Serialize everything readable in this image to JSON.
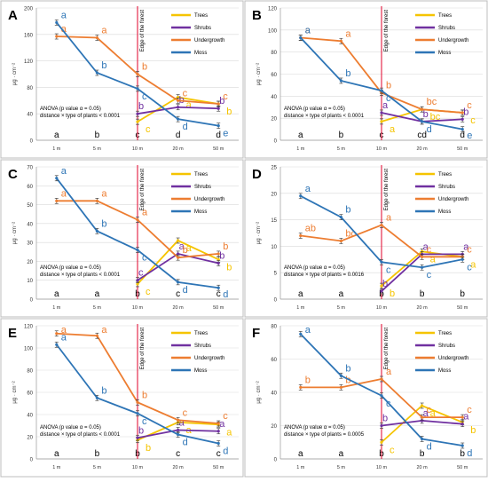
{
  "colors": {
    "Trees": "#F5C400",
    "Shrubs": "#7030A0",
    "Undergrowth": "#ED7D31",
    "Moss": "#2E75B6",
    "edge": "#E0002A"
  },
  "shared": {
    "legend": [
      "Trees",
      "Shrubs",
      "Undergrowth",
      "Moss"
    ],
    "edge_label": "Edge of the forest",
    "ylabel": "μg · cm⁻²",
    "categories": [
      "1 m",
      "5 m",
      "10 m",
      "20 m",
      "50 m"
    ],
    "anova_line": "ANOVA (p value α = 0.05)"
  },
  "chart_data": [
    {
      "panel": "A",
      "type": "line",
      "ylim": [
        0,
        200
      ],
      "yticks": [
        0,
        40,
        80,
        120,
        160,
        200
      ],
      "anova_detail": "distance × type of plants < 0.0001",
      "bottom_letters": [
        "a",
        "b",
        "c",
        "d",
        "d"
      ],
      "series": [
        {
          "name": "Trees",
          "x": [
            "10 m",
            "20 m",
            "50 m"
          ],
          "values": [
            28,
            65,
            55
          ],
          "letters": [
            "c",
            "a",
            "b"
          ]
        },
        {
          "name": "Shrubs",
          "x": [
            "10 m",
            "20 m",
            "50 m"
          ],
          "values": [
            40,
            50,
            48
          ],
          "letters": [
            "b",
            "b",
            "b"
          ]
        },
        {
          "name": "Undergrowth",
          "x": [
            "1 m",
            "5 m",
            "10 m",
            "20 m",
            "50 m"
          ],
          "values": [
            157,
            155,
            100,
            60,
            55
          ],
          "letters": [
            "a",
            "a",
            "b",
            "c",
            "c"
          ]
        },
        {
          "name": "Moss",
          "x": [
            "1 m",
            "5 m",
            "10 m",
            "20 m",
            "50 m"
          ],
          "values": [
            178,
            102,
            78,
            32,
            22
          ],
          "letters": [
            "a",
            "b",
            "c",
            "d",
            "e"
          ]
        }
      ]
    },
    {
      "panel": "B",
      "type": "line",
      "ylim": [
        0,
        120
      ],
      "yticks": [
        0,
        20,
        40,
        60,
        80,
        100,
        120
      ],
      "anova_detail": "distance × type of plants < 0.0001",
      "bottom_letters": [
        "a",
        "b",
        "c",
        "cd",
        "d"
      ],
      "series": [
        {
          "name": "Trees",
          "x": [
            "10 m",
            "20 m",
            "50 m"
          ],
          "values": [
            17,
            28,
            25
          ],
          "letters": [
            "a",
            "bc",
            "c"
          ]
        },
        {
          "name": "Shrubs",
          "x": [
            "10 m",
            "20 m",
            "50 m"
          ],
          "values": [
            25,
            17,
            19
          ],
          "letters": [
            "a",
            "b",
            "b"
          ]
        },
        {
          "name": "Undergrowth",
          "x": [
            "1 m",
            "5 m",
            "10 m",
            "20 m",
            "50 m"
          ],
          "values": [
            93,
            90,
            43,
            28,
            25
          ],
          "letters": [
            "a",
            "a",
            "b",
            "bc",
            "c"
          ]
        },
        {
          "name": "Moss",
          "x": [
            "1 m",
            "5 m",
            "10 m",
            "20 m",
            "50 m"
          ],
          "values": [
            93,
            54,
            45,
            17,
            10
          ],
          "letters": [
            "a",
            "b",
            "c",
            "d",
            "e"
          ]
        }
      ]
    },
    {
      "panel": "C",
      "type": "line",
      "ylim": [
        0,
        70
      ],
      "yticks": [
        0,
        10,
        20,
        30,
        40,
        50,
        60,
        70
      ],
      "anova_detail": "distance × type of plants < 0.0001",
      "bottom_letters": [
        "a",
        "a",
        "b",
        "c",
        "c"
      ],
      "series": [
        {
          "name": "Trees",
          "x": [
            "10 m",
            "20 m",
            "50 m"
          ],
          "values": [
            8,
            31,
            21
          ],
          "letters": [
            "c",
            "a",
            "b"
          ]
        },
        {
          "name": "Shrubs",
          "x": [
            "10 m",
            "20 m",
            "50 m"
          ],
          "values": [
            10,
            24,
            19
          ],
          "letters": [
            "c",
            "a",
            "b"
          ]
        },
        {
          "name": "Undergrowth",
          "x": [
            "1 m",
            "5 m",
            "10 m",
            "20 m",
            "50 m"
          ],
          "values": [
            52,
            52,
            42,
            22,
            24
          ],
          "letters": [
            "a",
            "a",
            "a",
            "b",
            "b"
          ]
        },
        {
          "name": "Moss",
          "x": [
            "1 m",
            "5 m",
            "10 m",
            "20 m",
            "50 m"
          ],
          "values": [
            64,
            36,
            26,
            9,
            6
          ],
          "letters": [
            "a",
            "b",
            "c",
            "d",
            "d"
          ]
        }
      ]
    },
    {
      "panel": "D",
      "type": "line",
      "ylim": [
        0,
        25
      ],
      "yticks": [
        0,
        5,
        10,
        15,
        20,
        25
      ],
      "anova_detail": "distance × type of plants = 0.0016",
      "bottom_letters": [
        "a",
        "a",
        "b",
        "b",
        "b"
      ],
      "series": [
        {
          "name": "Trees",
          "x": [
            "10 m",
            "20 m",
            "50 m"
          ],
          "values": [
            2.5,
            9,
            8
          ],
          "letters": [
            "b",
            "a",
            "a"
          ]
        },
        {
          "name": "Shrubs",
          "x": [
            "10 m",
            "20 m",
            "50 m"
          ],
          "values": [
            1.5,
            8.5,
            8.5
          ],
          "letters": [
            "b",
            "a",
            "a"
          ]
        },
        {
          "name": "Undergrowth",
          "x": [
            "1 m",
            "5 m",
            "10 m",
            "20 m",
            "50 m"
          ],
          "values": [
            12,
            11,
            14,
            8,
            8
          ],
          "letters": [
            "ab",
            "bc",
            "a",
            "c",
            "c"
          ]
        },
        {
          "name": "Moss",
          "x": [
            "1 m",
            "5 m",
            "10 m",
            "20 m",
            "50 m"
          ],
          "values": [
            19.5,
            15.5,
            7,
            6,
            7.5
          ],
          "letters": [
            "a",
            "b",
            "c",
            "c",
            "c"
          ]
        }
      ]
    },
    {
      "panel": "E",
      "type": "line",
      "ylim": [
        0,
        120
      ],
      "yticks": [
        0,
        20,
        40,
        60,
        80,
        100,
        120
      ],
      "anova_detail": "distance × type of plants < 0.0001",
      "bottom_letters": [
        "a",
        "b",
        "b",
        "c",
        "c"
      ],
      "series": [
        {
          "name": "Trees",
          "x": [
            "10 m",
            "20 m",
            "50 m"
          ],
          "values": [
            17,
            33,
            31
          ],
          "letters": [
            "b",
            "a",
            "a"
          ]
        },
        {
          "name": "Shrubs",
          "x": [
            "10 m",
            "20 m",
            "50 m"
          ],
          "values": [
            19,
            26,
            25
          ],
          "letters": [
            "b",
            "a",
            "a"
          ]
        },
        {
          "name": "Undergrowth",
          "x": [
            "1 m",
            "5 m",
            "10 m",
            "20 m",
            "50 m"
          ],
          "values": [
            113,
            111,
            51,
            35,
            32
          ],
          "letters": [
            "a",
            "a",
            "b",
            "c",
            "c"
          ]
        },
        {
          "name": "Moss",
          "x": [
            "1 m",
            "5 m",
            "10 m",
            "20 m",
            "50 m"
          ],
          "values": [
            103,
            55,
            41,
            22,
            14
          ],
          "letters": [
            "a",
            "b",
            "c",
            "d",
            "d"
          ]
        }
      ]
    },
    {
      "panel": "F",
      "type": "line",
      "ylim": [
        0,
        80
      ],
      "yticks": [
        0,
        20,
        40,
        60,
        80
      ],
      "anova_detail": "distance × type of plants = 0.0005",
      "bottom_letters": [
        "a",
        "a",
        "b",
        "b",
        "b"
      ],
      "series": [
        {
          "name": "Trees",
          "x": [
            "10 m",
            "20 m",
            "50 m"
          ],
          "values": [
            10,
            32,
            22
          ],
          "letters": [
            "c",
            "a",
            "b"
          ]
        },
        {
          "name": "Shrubs",
          "x": [
            "10 m",
            "20 m",
            "50 m"
          ],
          "values": [
            20,
            23,
            21
          ],
          "letters": [
            "b",
            "a",
            "a"
          ]
        },
        {
          "name": "Undergrowth",
          "x": [
            "1 m",
            "5 m",
            "10 m",
            "20 m",
            "50 m"
          ],
          "values": [
            43,
            43,
            48,
            25,
            25
          ],
          "letters": [
            "b",
            "b",
            "a",
            "c",
            "c"
          ]
        },
        {
          "name": "Moss",
          "x": [
            "1 m",
            "5 m",
            "10 m",
            "20 m",
            "50 m"
          ],
          "values": [
            75,
            50,
            38,
            12,
            8
          ],
          "letters": [
            "a",
            "b",
            "c",
            "d",
            "d"
          ]
        }
      ]
    }
  ]
}
